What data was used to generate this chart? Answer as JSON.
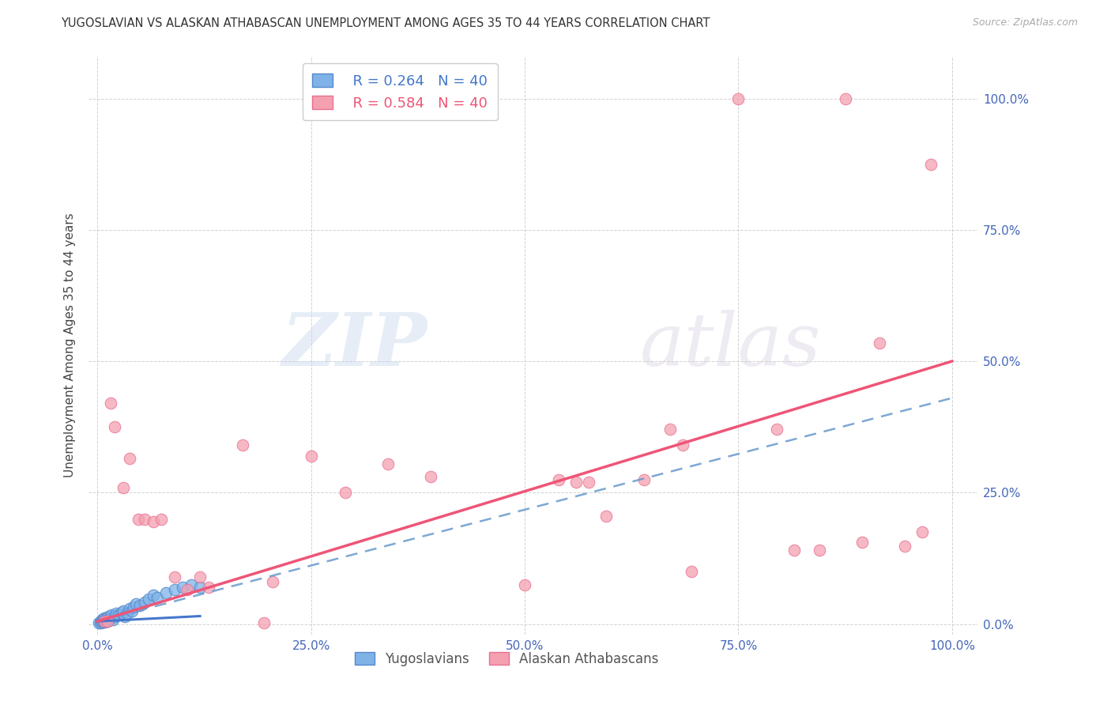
{
  "title": "YUGOSLAVIAN VS ALASKAN ATHABASCAN UNEMPLOYMENT AMONG AGES 35 TO 44 YEARS CORRELATION CHART",
  "source": "Source: ZipAtlas.com",
  "ylabel": "Unemployment Among Ages 35 to 44 years",
  "xlim": [
    -0.01,
    1.03
  ],
  "ylim": [
    -0.02,
    1.08
  ],
  "xticks": [
    0.0,
    0.25,
    0.5,
    0.75,
    1.0
  ],
  "yticks": [
    0.0,
    0.25,
    0.5,
    0.75,
    1.0
  ],
  "xticklabels": [
    "0.0%",
    "25.0%",
    "50.0%",
    "75.0%",
    "100.0%"
  ],
  "yticklabels": [
    "0.0%",
    "25.0%",
    "50.0%",
    "75.0%",
    "100.0%"
  ],
  "legend_r_blue": "R = 0.264",
  "legend_n_blue": "N = 40",
  "legend_r_pink": "R = 0.584",
  "legend_n_pink": "N = 40",
  "legend_label_blue": "Yugoslavians",
  "legend_label_pink": "Alaskan Athabascans",
  "blue_color": "#7FB3E8",
  "blue_edge_color": "#5588CC",
  "pink_color": "#F4A0B0",
  "pink_edge_color": "#E87090",
  "trendline_blue_solid_color": "#4477CC",
  "trendline_blue_dash_color": "#6699CC",
  "trendline_pink_color": "#EE5577",
  "watermark_zip": "ZIP",
  "watermark_atlas": "atlas",
  "blue_scatter": [
    [
      0.002,
      0.002
    ],
    [
      0.003,
      0.004
    ],
    [
      0.004,
      0.003
    ],
    [
      0.005,
      0.005
    ],
    [
      0.005,
      0.008
    ],
    [
      0.006,
      0.006
    ],
    [
      0.007,
      0.01
    ],
    [
      0.008,
      0.004
    ],
    [
      0.008,
      0.012
    ],
    [
      0.009,
      0.007
    ],
    [
      0.01,
      0.005
    ],
    [
      0.01,
      0.01
    ],
    [
      0.011,
      0.008
    ],
    [
      0.012,
      0.006
    ],
    [
      0.013,
      0.015
    ],
    [
      0.014,
      0.01
    ],
    [
      0.015,
      0.012
    ],
    [
      0.016,
      0.018
    ],
    [
      0.018,
      0.008
    ],
    [
      0.02,
      0.015
    ],
    [
      0.022,
      0.02
    ],
    [
      0.025,
      0.018
    ],
    [
      0.028,
      0.022
    ],
    [
      0.03,
      0.025
    ],
    [
      0.032,
      0.015
    ],
    [
      0.035,
      0.02
    ],
    [
      0.038,
      0.03
    ],
    [
      0.04,
      0.025
    ],
    [
      0.042,
      0.032
    ],
    [
      0.045,
      0.038
    ],
    [
      0.05,
      0.035
    ],
    [
      0.055,
      0.042
    ],
    [
      0.06,
      0.048
    ],
    [
      0.065,
      0.055
    ],
    [
      0.07,
      0.05
    ],
    [
      0.08,
      0.06
    ],
    [
      0.09,
      0.065
    ],
    [
      0.1,
      0.07
    ],
    [
      0.11,
      0.075
    ],
    [
      0.12,
      0.07
    ]
  ],
  "pink_scatter": [
    [
      0.008,
      0.005
    ],
    [
      0.012,
      0.005
    ],
    [
      0.015,
      0.42
    ],
    [
      0.02,
      0.375
    ],
    [
      0.03,
      0.26
    ],
    [
      0.038,
      0.315
    ],
    [
      0.048,
      0.2
    ],
    [
      0.055,
      0.2
    ],
    [
      0.065,
      0.195
    ],
    [
      0.075,
      0.2
    ],
    [
      0.09,
      0.09
    ],
    [
      0.105,
      0.065
    ],
    [
      0.12,
      0.09
    ],
    [
      0.13,
      0.07
    ],
    [
      0.17,
      0.34
    ],
    [
      0.195,
      0.002
    ],
    [
      0.205,
      0.08
    ],
    [
      0.25,
      0.32
    ],
    [
      0.29,
      0.25
    ],
    [
      0.34,
      0.305
    ],
    [
      0.39,
      0.28
    ],
    [
      0.5,
      0.075
    ],
    [
      0.54,
      0.275
    ],
    [
      0.56,
      0.27
    ],
    [
      0.575,
      0.27
    ],
    [
      0.595,
      0.205
    ],
    [
      0.64,
      0.275
    ],
    [
      0.67,
      0.37
    ],
    [
      0.685,
      0.34
    ],
    [
      0.695,
      0.1
    ],
    [
      0.75,
      1.0
    ],
    [
      0.795,
      0.37
    ],
    [
      0.815,
      0.14
    ],
    [
      0.845,
      0.14
    ],
    [
      0.875,
      1.0
    ],
    [
      0.895,
      0.155
    ],
    [
      0.915,
      0.535
    ],
    [
      0.945,
      0.148
    ],
    [
      0.965,
      0.175
    ],
    [
      0.975,
      0.875
    ]
  ],
  "blue_trend": {
    "x_start": 0.0,
    "x_end": 0.12,
    "y_start": 0.005,
    "y_end": 0.015,
    "style": "solid"
  },
  "blue_dash_trend": {
    "x_start": 0.0,
    "x_end": 1.0,
    "y_start": 0.005,
    "y_end": 0.43
  },
  "pink_trend": {
    "x_start": 0.0,
    "x_end": 1.0,
    "y_start": 0.005,
    "y_end": 0.5
  }
}
